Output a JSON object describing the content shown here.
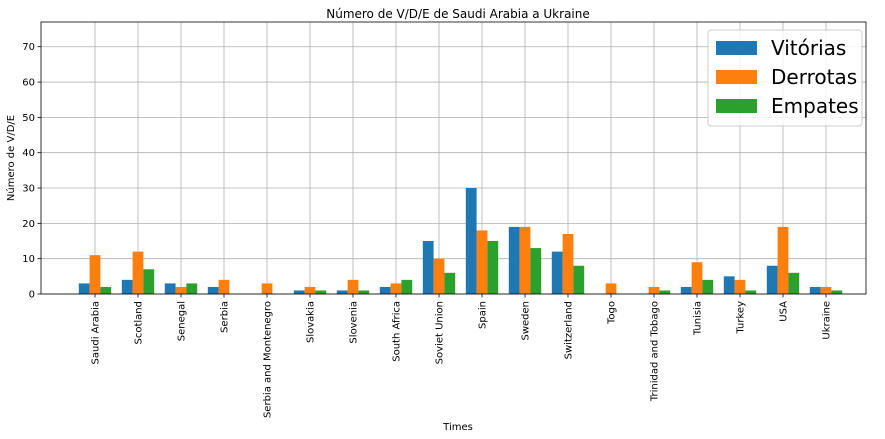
{
  "chart_data": {
    "type": "bar",
    "title": "Número de V/D/E de Saudi Arabia a Ukraine",
    "xlabel": "Times",
    "ylabel": "Número de V/D/E",
    "ylim": [
      0,
      77
    ],
    "yticks": [
      0,
      10,
      20,
      30,
      40,
      50,
      60,
      70
    ],
    "grid": true,
    "legend_position": "top-right",
    "categories": [
      "Saudi Arabia",
      "Scotland",
      "Senegal",
      "Serbia",
      "Serbia and Montenegro",
      "Slovakia",
      "Slovenia",
      "South Africa",
      "Soviet Union",
      "Spain",
      "Sweden",
      "Switzerland",
      "Togo",
      "Trinidad and Tobago",
      "Tunisia",
      "Turkey",
      "USA",
      "Ukraine"
    ],
    "series": [
      {
        "name": "Vitórias",
        "color": "#1f77b4",
        "values": [
          3,
          4,
          3,
          2,
          0,
          1,
          1,
          2,
          15,
          30,
          19,
          12,
          0,
          0,
          2,
          5,
          8,
          2
        ]
      },
      {
        "name": "Derrotas",
        "color": "#ff7f0e",
        "values": [
          11,
          12,
          2,
          4,
          3,
          2,
          4,
          3,
          10,
          18,
          19,
          17,
          3,
          2,
          9,
          4,
          19,
          2
        ]
      },
      {
        "name": "Empates",
        "color": "#2ca02c",
        "values": [
          2,
          7,
          3,
          0,
          0,
          1,
          1,
          4,
          6,
          15,
          13,
          8,
          0,
          1,
          4,
          1,
          6,
          1
        ]
      }
    ]
  }
}
